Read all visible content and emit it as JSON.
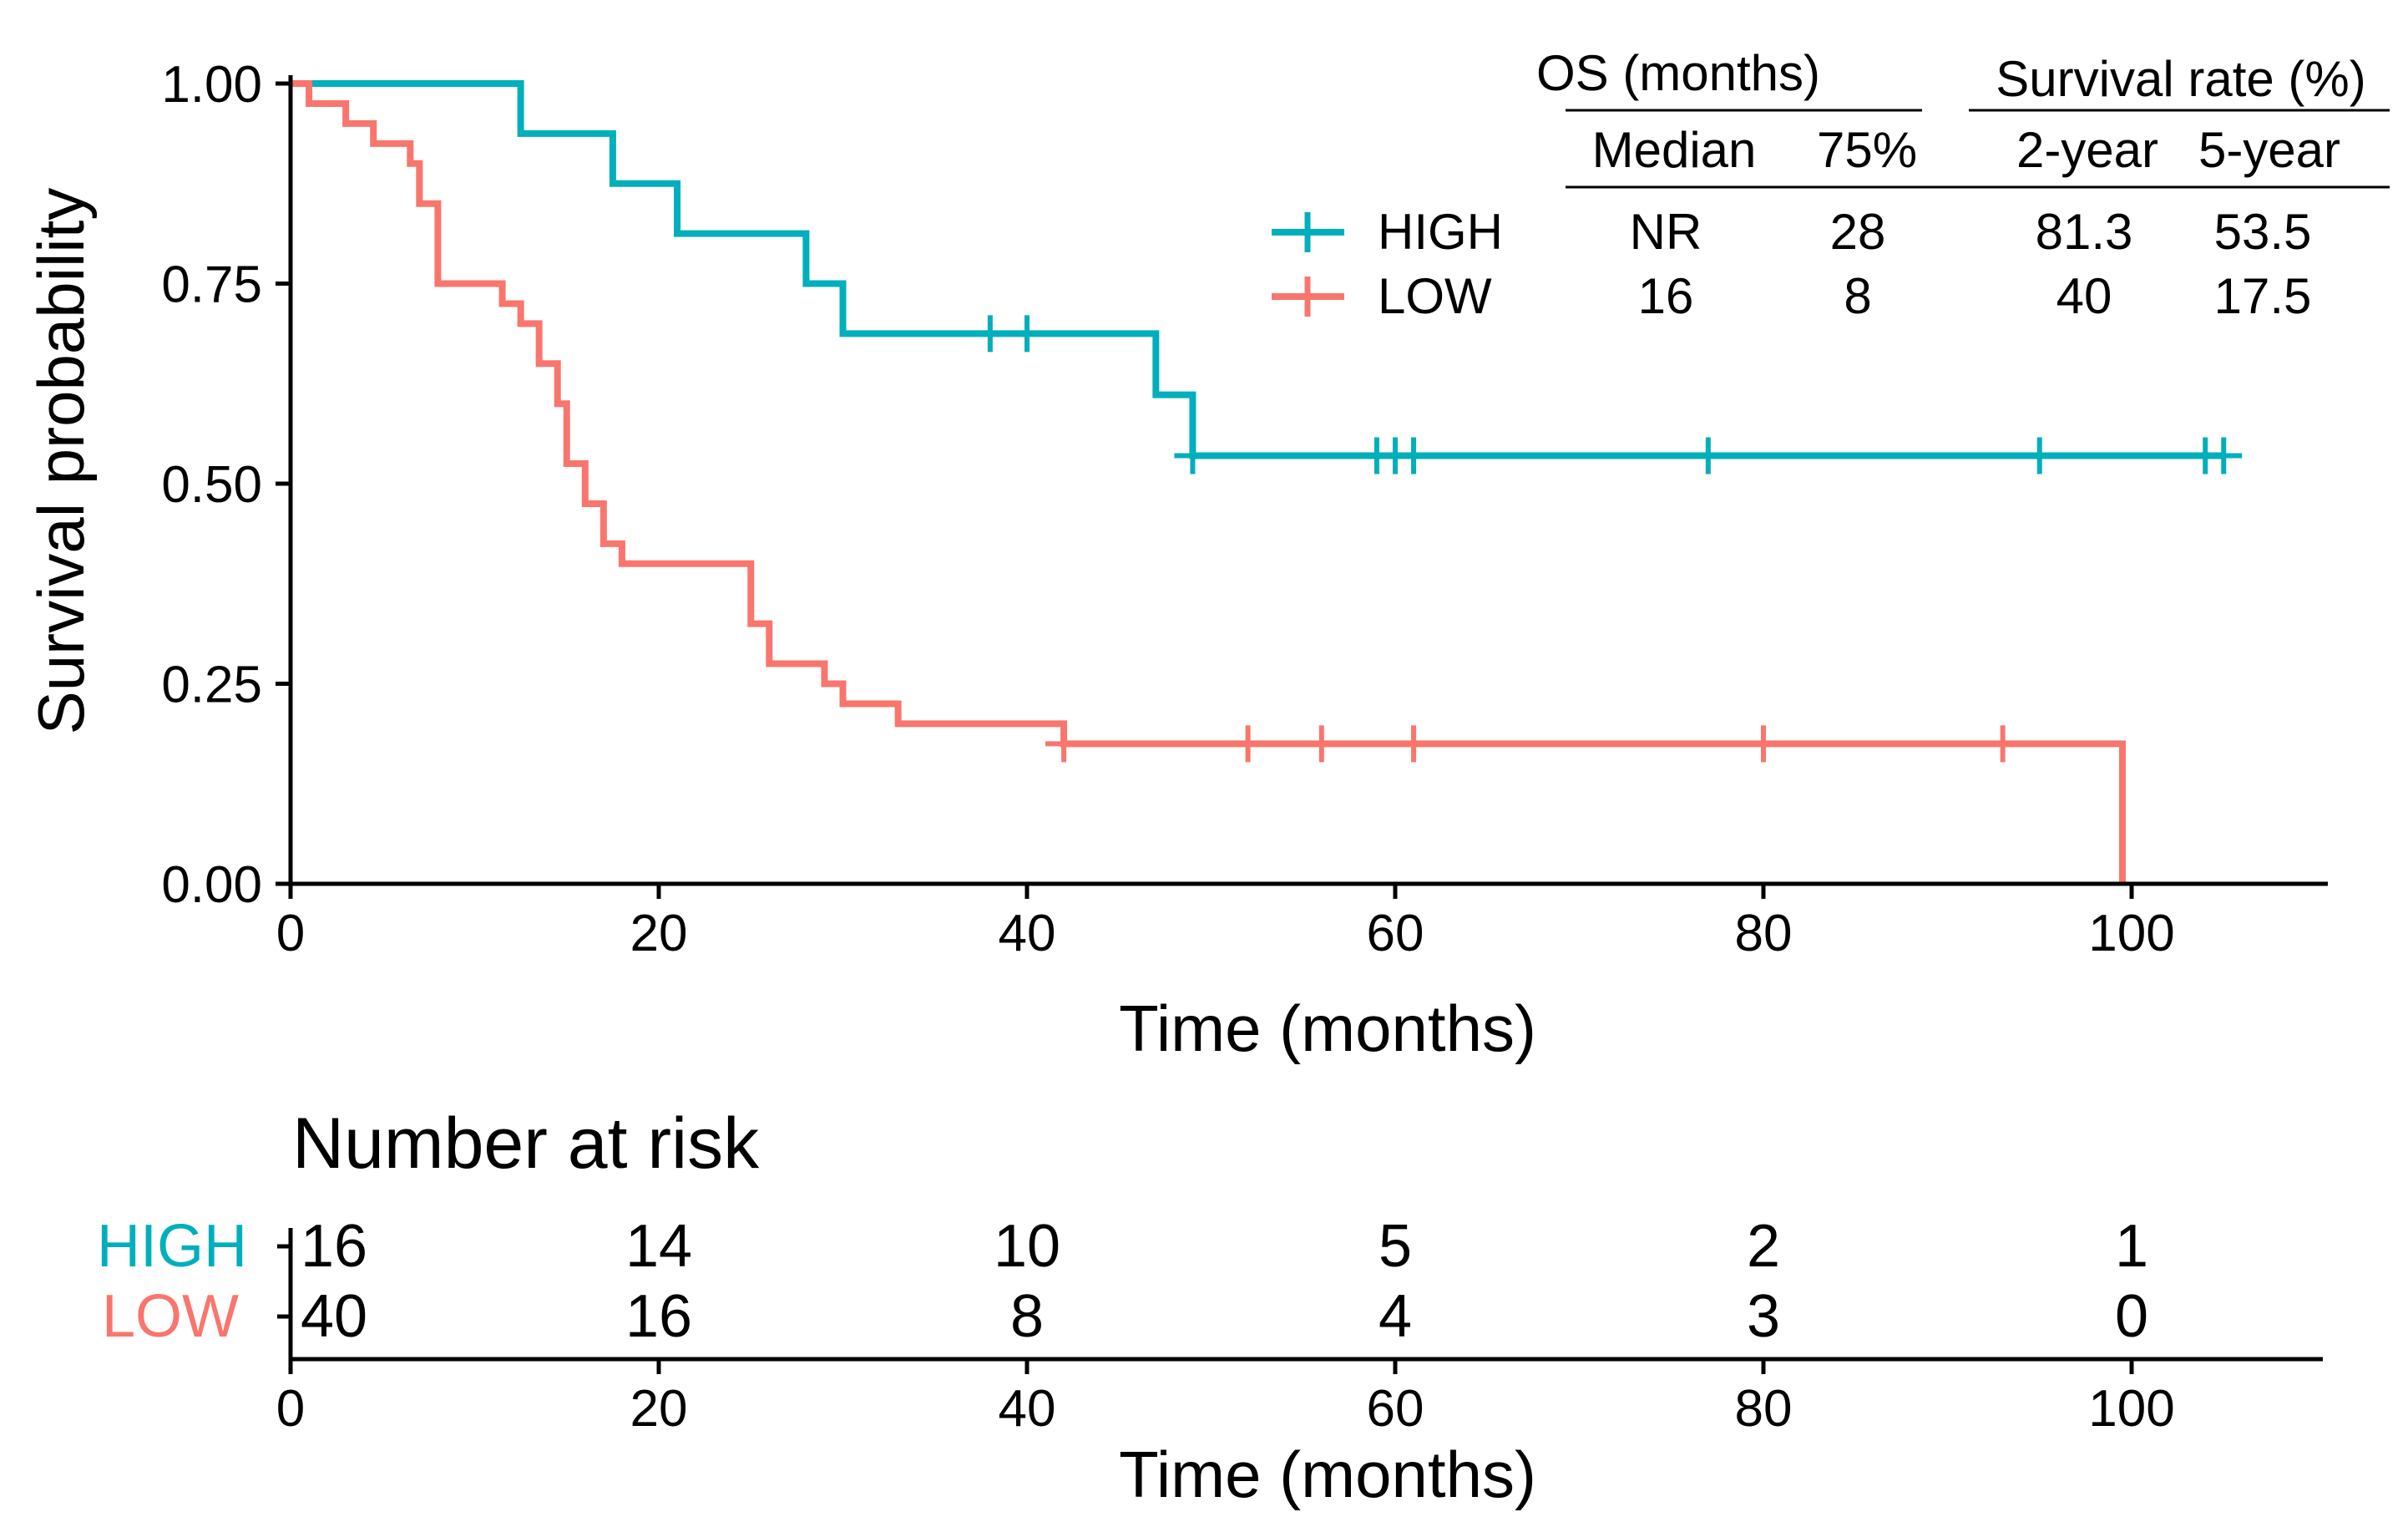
{
  "chart_data": {
    "type": "kaplan-meier",
    "xlabel": "Time (months)",
    "ylabel": "Survival probability",
    "xlim": [
      0,
      110
    ],
    "ylim": [
      0,
      1
    ],
    "x_ticks": [
      0,
      20,
      40,
      60,
      80,
      100
    ],
    "y_ticks": [
      "0.00",
      "0.25",
      "0.50",
      "0.75",
      "1.00"
    ],
    "y_tick_values": [
      0,
      0.25,
      0.5,
      0.75,
      1.0
    ],
    "legend_position": "top-right",
    "series": [
      {
        "name": "HIGH",
        "color": "#00AFBB",
        "steps": [
          [
            0,
            1.0
          ],
          [
            12.5,
            0.9375
          ],
          [
            17.5,
            0.875
          ],
          [
            21,
            0.8125
          ],
          [
            28,
            0.75
          ],
          [
            30,
            0.6875
          ],
          [
            47,
            0.611
          ],
          [
            49,
            0.535
          ],
          [
            105,
            0.535
          ]
        ],
        "censored": [
          [
            38,
            0.6875
          ],
          [
            40,
            0.6875
          ],
          [
            49,
            0.535
          ],
          [
            59,
            0.535
          ],
          [
            60,
            0.535
          ],
          [
            61,
            0.535
          ],
          [
            77,
            0.535
          ],
          [
            95,
            0.535
          ],
          [
            104,
            0.535
          ],
          [
            105,
            0.535
          ]
        ]
      },
      {
        "name": "LOW",
        "color": "#F8766D",
        "steps": [
          [
            0,
            1.0
          ],
          [
            1,
            0.975
          ],
          [
            3,
            0.95
          ],
          [
            4.5,
            0.925
          ],
          [
            6.5,
            0.9
          ],
          [
            7,
            0.85
          ],
          [
            8,
            0.75
          ],
          [
            11.5,
            0.725
          ],
          [
            12.5,
            0.7
          ],
          [
            13.5,
            0.65
          ],
          [
            14.5,
            0.6
          ],
          [
            15,
            0.525
          ],
          [
            16,
            0.475
          ],
          [
            17,
            0.425
          ],
          [
            18,
            0.4
          ],
          [
            25,
            0.325
          ],
          [
            26,
            0.275
          ],
          [
            29,
            0.25
          ],
          [
            30,
            0.225
          ],
          [
            33,
            0.2
          ],
          [
            42,
            0.175
          ],
          [
            99.5,
            0.0
          ]
        ],
        "censored": [
          [
            42,
            0.175
          ],
          [
            52,
            0.175
          ],
          [
            56,
            0.175
          ],
          [
            61,
            0.175
          ],
          [
            80,
            0.175
          ],
          [
            93,
            0.175
          ]
        ]
      }
    ],
    "stats_table": {
      "os_header": "OS (months)",
      "rate_header": "Survival rate (%)",
      "columns": [
        "Median",
        "75%",
        "2-year",
        "5-year"
      ],
      "rows": [
        {
          "group": "HIGH",
          "values": [
            "NR",
            "28",
            "81.3",
            "53.5"
          ]
        },
        {
          "group": "LOW",
          "values": [
            "16",
            "8",
            "40",
            "17.5"
          ]
        }
      ]
    },
    "risk_table": {
      "title": "Number at risk",
      "xlabel": "Time (months)",
      "times": [
        0,
        20,
        40,
        60,
        80,
        100
      ],
      "time_labels": [
        "0",
        "20",
        "40",
        "60",
        "80",
        "100"
      ],
      "rows": [
        {
          "group": "HIGH",
          "counts": [
            "16",
            "14",
            "10",
            "5",
            "2",
            "1"
          ]
        },
        {
          "group": "LOW",
          "counts": [
            "40",
            "16",
            "8",
            "4",
            "3",
            "0"
          ]
        }
      ]
    }
  }
}
